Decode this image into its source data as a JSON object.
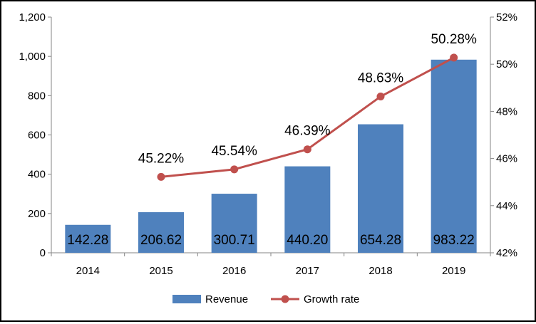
{
  "chart_data": {
    "type": "bar+line",
    "categories": [
      "2014",
      "2015",
      "2016",
      "2017",
      "2018",
      "2019"
    ],
    "series": [
      {
        "name": "Revenue",
        "type": "bar",
        "axis": "left",
        "values": [
          142.28,
          206.62,
          300.71,
          440.2,
          654.28,
          983.22
        ],
        "labels": [
          "142.28",
          "206.62",
          "300.71",
          "440.20",
          "654.28",
          "983.22"
        ],
        "color": "#4F81BD"
      },
      {
        "name": "Growth rate",
        "type": "line",
        "axis": "right",
        "values": [
          null,
          45.22,
          45.54,
          46.39,
          48.63,
          50.28
        ],
        "labels": [
          null,
          "45.22%",
          "45.54%",
          "46.39%",
          "48.63%",
          "50.28%"
        ],
        "color": "#C0504D"
      }
    ],
    "y_left": {
      "min": 0,
      "max": 1200,
      "step": 200,
      "tick_labels": [
        "0",
        "200",
        "400",
        "600",
        "800",
        "1,000",
        "1,200"
      ]
    },
    "y_right": {
      "min": 42,
      "max": 52,
      "step": 2,
      "tick_labels": [
        "42%",
        "44%",
        "46%",
        "48%",
        "50%",
        "52%"
      ]
    },
    "legend": {
      "position": "bottom",
      "items": [
        "Revenue",
        "Growth rate"
      ]
    },
    "grid": false
  }
}
